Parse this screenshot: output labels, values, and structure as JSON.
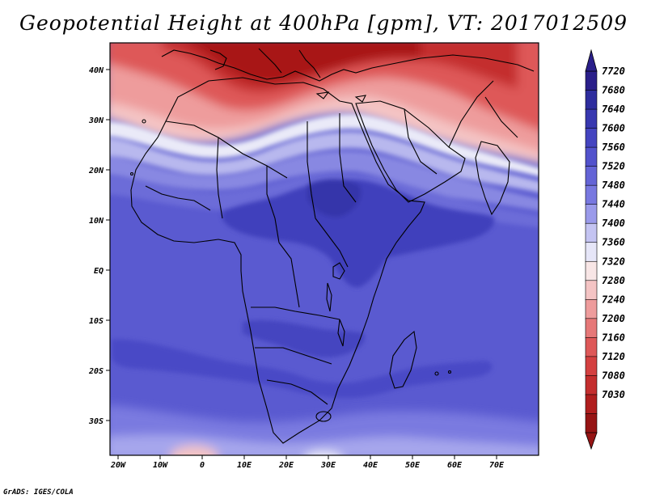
{
  "title": "Geopotential Height at 400hPa [gpm], VT: 2017012509",
  "credit": "GrADS: IGES/COLA",
  "map": {
    "region": "Africa",
    "lon_labels": [
      "20W",
      "10W",
      "0",
      "10E",
      "20E",
      "30E",
      "40E",
      "50E",
      "60E",
      "70E"
    ],
    "lat_labels": [
      "40N",
      "30N",
      "20N",
      "10N",
      "EQ",
      "10S",
      "20S",
      "30S"
    ]
  },
  "colorbar": {
    "levels": [
      "7720",
      "7680",
      "7640",
      "7600",
      "7560",
      "7520",
      "7480",
      "7440",
      "7400",
      "7360",
      "7320",
      "7280",
      "7240",
      "7200",
      "7160",
      "7120",
      "7080",
      "7030"
    ],
    "colors": [
      "#2a1f8a",
      "#2e2d9e",
      "#3838b0",
      "#4444c0",
      "#5252cc",
      "#6464d6",
      "#7878e0",
      "#9a9aea",
      "#c4c4f2",
      "#e6e6f8",
      "#f8e6e6",
      "#f4c4c4",
      "#ee9c9c",
      "#e67878",
      "#de5858",
      "#d44040",
      "#c42e2e",
      "#b01e1e",
      "#961414"
    ]
  }
}
